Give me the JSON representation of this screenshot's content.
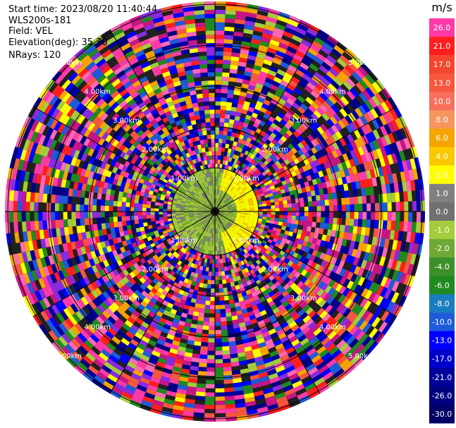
{
  "header": {
    "start_time": "Start time: 2023/08/20 11:40:44",
    "instrument": "WLS200s-181",
    "field": "Field: VEL",
    "elevation": "Elevation(deg): 35.30",
    "nrays": "NRays: 120"
  },
  "colorbar": {
    "unit": "m/s",
    "levels": [
      {
        "label": "26.0",
        "color": "#ff3aa8"
      },
      {
        "label": "21.0",
        "color": "#ff1e1e"
      },
      {
        "label": "17.0",
        "color": "#f4462f"
      },
      {
        "label": "13.0",
        "color": "#f7573e"
      },
      {
        "label": "10.0",
        "color": "#f8705c"
      },
      {
        "label": "8.0",
        "color": "#f7955f"
      },
      {
        "label": "6.0",
        "color": "#f6a400"
      },
      {
        "label": "4.0",
        "color": "#f9c800"
      },
      {
        "label": "2.0",
        "color": "#ffff00"
      },
      {
        "label": "1.0",
        "color": "#808080"
      },
      {
        "label": "0.0",
        "color": "#707070"
      },
      {
        "label": "-1.0",
        "color": "#a5cc3c"
      },
      {
        "label": "-2.0",
        "color": "#6fa834"
      },
      {
        "label": "-4.0",
        "color": "#3d8f2a"
      },
      {
        "label": "-6.0",
        "color": "#1f8a1f"
      },
      {
        "label": "-8.0",
        "color": "#1a7dbf"
      },
      {
        "label": "-10.0",
        "color": "#1e5bd8"
      },
      {
        "label": "-13.0",
        "color": "#0000ff"
      },
      {
        "label": "-17.0",
        "color": "#0000cc"
      },
      {
        "label": "-21.0",
        "color": "#00009a"
      },
      {
        "label": "-26.0",
        "color": "#000080"
      },
      {
        "label": "-30.0",
        "color": "#000066"
      }
    ]
  },
  "range_rings": [
    {
      "label": "1.00km"
    },
    {
      "label": "2.00km"
    },
    {
      "label": "3.00km"
    },
    {
      "label": "4.00km"
    },
    {
      "label": "5.00km"
    }
  ]
}
